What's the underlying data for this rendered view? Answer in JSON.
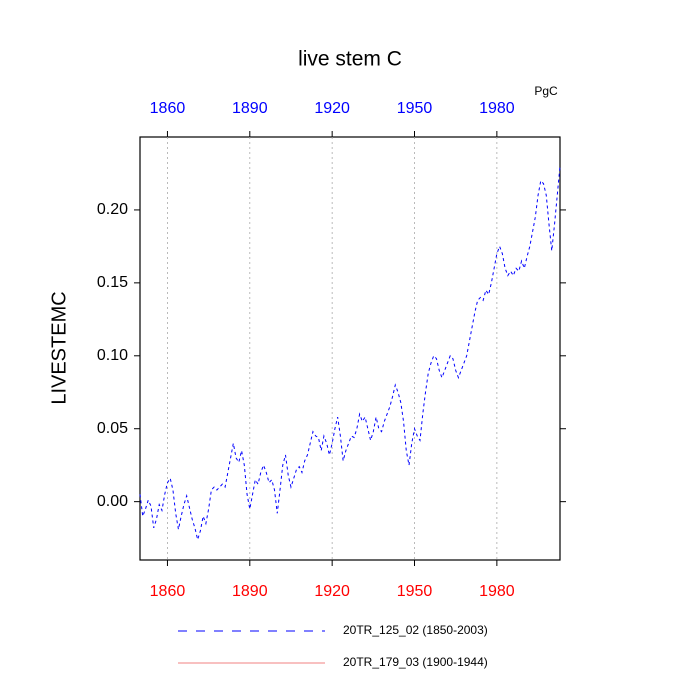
{
  "chart_data": {
    "type": "line",
    "title": "live stem C",
    "ylabel": "LIVESTEMC",
    "units": "PgC",
    "x": [
      1850,
      1851,
      1852,
      1853,
      1854,
      1855,
      1856,
      1857,
      1858,
      1859,
      1860,
      1861,
      1862,
      1863,
      1864,
      1865,
      1866,
      1867,
      1868,
      1869,
      1870,
      1871,
      1872,
      1873,
      1874,
      1875,
      1876,
      1877,
      1878,
      1879,
      1880,
      1881,
      1882,
      1883,
      1884,
      1885,
      1886,
      1887,
      1888,
      1889,
      1890,
      1891,
      1892,
      1893,
      1894,
      1895,
      1896,
      1897,
      1898,
      1899,
      1900,
      1901,
      1902,
      1903,
      1904,
      1905,
      1906,
      1907,
      1908,
      1909,
      1910,
      1911,
      1912,
      1913,
      1914,
      1915,
      1916,
      1917,
      1918,
      1919,
      1920,
      1921,
      1922,
      1923,
      1924,
      1925,
      1926,
      1927,
      1928,
      1929,
      1930,
      1931,
      1932,
      1933,
      1934,
      1935,
      1936,
      1937,
      1938,
      1939,
      1940,
      1941,
      1942,
      1943,
      1944,
      1945,
      1946,
      1947,
      1948,
      1949,
      1950,
      1951,
      1952,
      1953,
      1954,
      1955,
      1956,
      1957,
      1958,
      1959,
      1960,
      1961,
      1962,
      1963,
      1964,
      1965,
      1966,
      1967,
      1968,
      1969,
      1970,
      1971,
      1972,
      1973,
      1974,
      1975,
      1976,
      1977,
      1978,
      1979,
      1980,
      1981,
      1982,
      1983,
      1984,
      1985,
      1986,
      1987,
      1988,
      1989,
      1990,
      1991,
      1992,
      1993,
      1994,
      1995,
      1996,
      1997,
      1998,
      1999,
      2000,
      2001,
      2002,
      2003
    ],
    "series": [
      {
        "name": "20TR_125_02 (1850-2003)",
        "color": "#0000ff",
        "dash": "dashed",
        "values": [
          0.005,
          -0.01,
          -0.005,
          0.001,
          -0.003,
          -0.018,
          -0.012,
          -0.002,
          -0.006,
          0.005,
          0.013,
          0.016,
          0.008,
          -0.008,
          -0.019,
          -0.01,
          -0.002,
          0.004,
          -0.004,
          -0.012,
          -0.018,
          -0.026,
          -0.02,
          -0.01,
          -0.015,
          -0.005,
          0.008,
          0.01,
          0.008,
          0.01,
          0.012,
          0.01,
          0.02,
          0.03,
          0.04,
          0.03,
          0.027,
          0.035,
          0.025,
          0.005,
          -0.005,
          0.005,
          0.015,
          0.012,
          0.02,
          0.025,
          0.02,
          0.013,
          0.015,
          0.008,
          -0.008,
          0.008,
          0.025,
          0.032,
          0.018,
          0.01,
          0.016,
          0.022,
          0.024,
          0.02,
          0.028,
          0.032,
          0.04,
          0.048,
          0.045,
          0.044,
          0.035,
          0.045,
          0.04,
          0.032,
          0.04,
          0.05,
          0.058,
          0.045,
          0.028,
          0.035,
          0.04,
          0.045,
          0.044,
          0.05,
          0.06,
          0.055,
          0.058,
          0.05,
          0.042,
          0.048,
          0.058,
          0.05,
          0.048,
          0.055,
          0.06,
          0.065,
          0.072,
          0.08,
          0.075,
          0.068,
          0.055,
          0.035,
          0.025,
          0.04,
          0.05,
          0.045,
          0.042,
          0.06,
          0.075,
          0.088,
          0.095,
          0.1,
          0.098,
          0.09,
          0.085,
          0.09,
          0.095,
          0.1,
          0.098,
          0.09,
          0.085,
          0.09,
          0.095,
          0.1,
          0.11,
          0.12,
          0.13,
          0.138,
          0.14,
          0.138,
          0.145,
          0.142,
          0.15,
          0.16,
          0.17,
          0.175,
          0.17,
          0.16,
          0.155,
          0.158,
          0.155,
          0.16,
          0.158,
          0.165,
          0.16,
          0.168,
          0.175,
          0.185,
          0.195,
          0.21,
          0.22,
          0.218,
          0.21,
          0.19,
          0.172,
          0.19,
          0.21,
          0.23
        ]
      },
      {
        "name": "20TR_179_03 (1900-1944)",
        "color": "#f08080",
        "dash": "solid",
        "values": [
          null,
          null,
          null,
          null,
          null,
          null,
          null,
          null,
          null,
          null,
          null,
          null,
          null,
          null,
          null,
          null,
          null,
          null,
          null,
          null,
          null,
          null,
          null,
          null,
          null,
          null,
          null,
          null,
          null,
          null,
          null,
          null,
          null,
          null,
          null,
          null,
          null,
          null,
          null,
          null,
          null,
          null,
          null,
          null,
          null,
          null,
          null,
          null,
          null,
          null,
          null,
          null,
          null,
          null,
          null,
          null,
          null,
          null,
          null,
          null,
          null,
          null,
          null,
          null,
          null,
          null,
          null,
          null,
          null,
          null,
          null,
          null,
          null,
          null,
          null,
          null,
          null,
          null,
          null,
          null,
          null,
          null,
          null,
          null,
          null,
          null,
          null,
          null,
          null,
          null,
          null,
          null,
          null,
          null,
          null,
          null,
          null,
          null,
          null,
          null,
          null,
          null,
          null,
          null,
          null,
          null,
          null,
          null,
          null,
          null,
          null,
          null,
          null,
          null,
          null,
          null,
          null,
          null,
          null,
          null,
          null,
          null,
          null,
          null,
          null,
          null,
          null,
          null,
          null,
          null,
          null,
          null,
          null,
          null,
          null,
          null,
          null,
          null,
          null,
          null,
          null,
          null,
          null,
          null,
          null,
          null,
          null,
          null,
          null,
          null,
          null,
          null,
          null,
          null
        ]
      }
    ],
    "xlim": [
      1850,
      2003
    ],
    "xticks": [
      1860,
      1890,
      1920,
      1950,
      1980
    ],
    "ylim": [
      -0.04,
      0.25
    ],
    "yticks": [
      {
        "value": 0,
        "label": "0.00"
      },
      {
        "value": 0.05,
        "label": "0.05"
      },
      {
        "value": 0.1,
        "label": "0.10"
      },
      {
        "value": 0.15,
        "label": "0.15"
      },
      {
        "value": 0.2,
        "label": "0.20"
      }
    ],
    "grid": "x",
    "top_tick_color": "#0000ff",
    "bottom_tick_color": "#ff0000",
    "legend": "bottom"
  }
}
